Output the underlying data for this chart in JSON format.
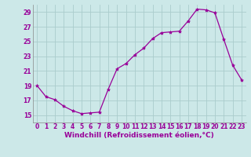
{
  "x": [
    0,
    1,
    2,
    3,
    4,
    5,
    6,
    7,
    8,
    9,
    10,
    11,
    12,
    13,
    14,
    15,
    16,
    17,
    18,
    19,
    20,
    21,
    22,
    23
  ],
  "y": [
    19.0,
    17.5,
    17.1,
    16.2,
    15.6,
    15.2,
    15.3,
    15.4,
    18.5,
    21.3,
    22.0,
    23.2,
    24.1,
    25.4,
    26.2,
    26.3,
    26.4,
    27.8,
    29.4,
    29.3,
    28.9,
    25.3,
    21.8,
    19.8
  ],
  "line_color": "#990099",
  "marker": "*",
  "marker_size": 3,
  "bg_color": "#cce8e8",
  "grid_color": "#aacccc",
  "xlabel": "Windchill (Refroidissement éolien,°C)",
  "xlabel_fontsize": 6.5,
  "ylim": [
    14,
    30
  ],
  "yticks": [
    15,
    17,
    19,
    21,
    23,
    25,
    27,
    29
  ],
  "xticks": [
    0,
    1,
    2,
    3,
    4,
    5,
    6,
    7,
    8,
    9,
    10,
    11,
    12,
    13,
    14,
    15,
    16,
    17,
    18,
    19,
    20,
    21,
    22,
    23
  ],
  "tick_fontsize": 5.5,
  "spine_color": "#888888"
}
